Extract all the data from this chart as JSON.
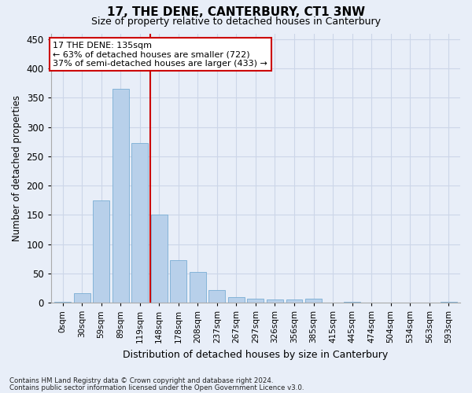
{
  "title": "17, THE DENE, CANTERBURY, CT1 3NW",
  "subtitle": "Size of property relative to detached houses in Canterbury",
  "xlabel": "Distribution of detached houses by size in Canterbury",
  "ylabel": "Number of detached properties",
  "categories": [
    "0sqm",
    "30sqm",
    "59sqm",
    "89sqm",
    "119sqm",
    "148sqm",
    "178sqm",
    "208sqm",
    "237sqm",
    "267sqm",
    "297sqm",
    "326sqm",
    "356sqm",
    "385sqm",
    "415sqm",
    "445sqm",
    "474sqm",
    "504sqm",
    "534sqm",
    "563sqm",
    "593sqm"
  ],
  "values": [
    2,
    16,
    175,
    365,
    273,
    150,
    72,
    53,
    22,
    10,
    7,
    5,
    5,
    7,
    0,
    1,
    0,
    0,
    0,
    0,
    2
  ],
  "bar_color": "#b8d0ea",
  "bar_edge_color": "#7aadd4",
  "grid_color": "#ccd6e8",
  "background_color": "#e8eef8",
  "vline_x": 4.55,
  "vline_color": "#cc0000",
  "annotation_line1": "17 THE DENE: 135sqm",
  "annotation_line2": "← 63% of detached houses are smaller (722)",
  "annotation_line3": "37% of semi-detached houses are larger (433) →",
  "annotation_box_color": "#ffffff",
  "annotation_box_edge": "#cc0000",
  "footer_line1": "Contains HM Land Registry data © Crown copyright and database right 2024.",
  "footer_line2": "Contains public sector information licensed under the Open Government Licence v3.0.",
  "ylim": [
    0,
    460
  ],
  "yticks": [
    0,
    50,
    100,
    150,
    200,
    250,
    300,
    350,
    400,
    450
  ]
}
